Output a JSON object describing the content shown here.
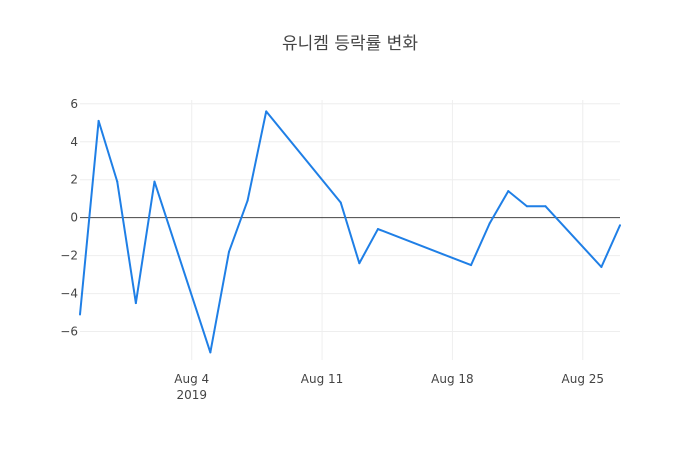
{
  "chart_data": {
    "type": "line",
    "title": "유니켐 등락률 변화",
    "xlabel": "",
    "ylabel": "",
    "x": [
      "2019-07-29",
      "2019-07-30",
      "2019-07-31",
      "2019-08-01",
      "2019-08-02",
      "2019-08-05",
      "2019-08-06",
      "2019-08-07",
      "2019-08-08",
      "2019-08-12",
      "2019-08-13",
      "2019-08-14",
      "2019-08-19",
      "2019-08-20",
      "2019-08-21",
      "2019-08-22",
      "2019-08-23",
      "2019-08-26",
      "2019-08-27"
    ],
    "series": [
      {
        "values": [
          -5.1,
          5.1,
          1.9,
          -4.5,
          1.9,
          -7.1,
          -1.8,
          0.9,
          5.6,
          0.8,
          -2.4,
          -0.6,
          -2.5,
          -0.3,
          1.4,
          0.6,
          0.6,
          -2.6,
          -0.4
        ],
        "color": "#1f7fe6"
      }
    ],
    "ylim": [
      -7.5,
      6.2
    ],
    "xlim": [
      "2019-07-29",
      "2019-08-27"
    ],
    "yticks": [
      -6,
      -4,
      -2,
      0,
      2,
      4,
      6
    ],
    "yticklabels": [
      "−6",
      "−4",
      "−2",
      "0",
      "2",
      "4",
      "6"
    ],
    "xticks": [
      {
        "date": "2019-08-04",
        "label": "Aug 4",
        "sublabel": "2019"
      },
      {
        "date": "2019-08-11",
        "label": "Aug 11",
        "sublabel": ""
      },
      {
        "date": "2019-08-18",
        "label": "Aug 18",
        "sublabel": ""
      },
      {
        "date": "2019-08-25",
        "label": "Aug 25",
        "sublabel": ""
      }
    ],
    "grid": true,
    "zero_line": true,
    "legend": false
  }
}
